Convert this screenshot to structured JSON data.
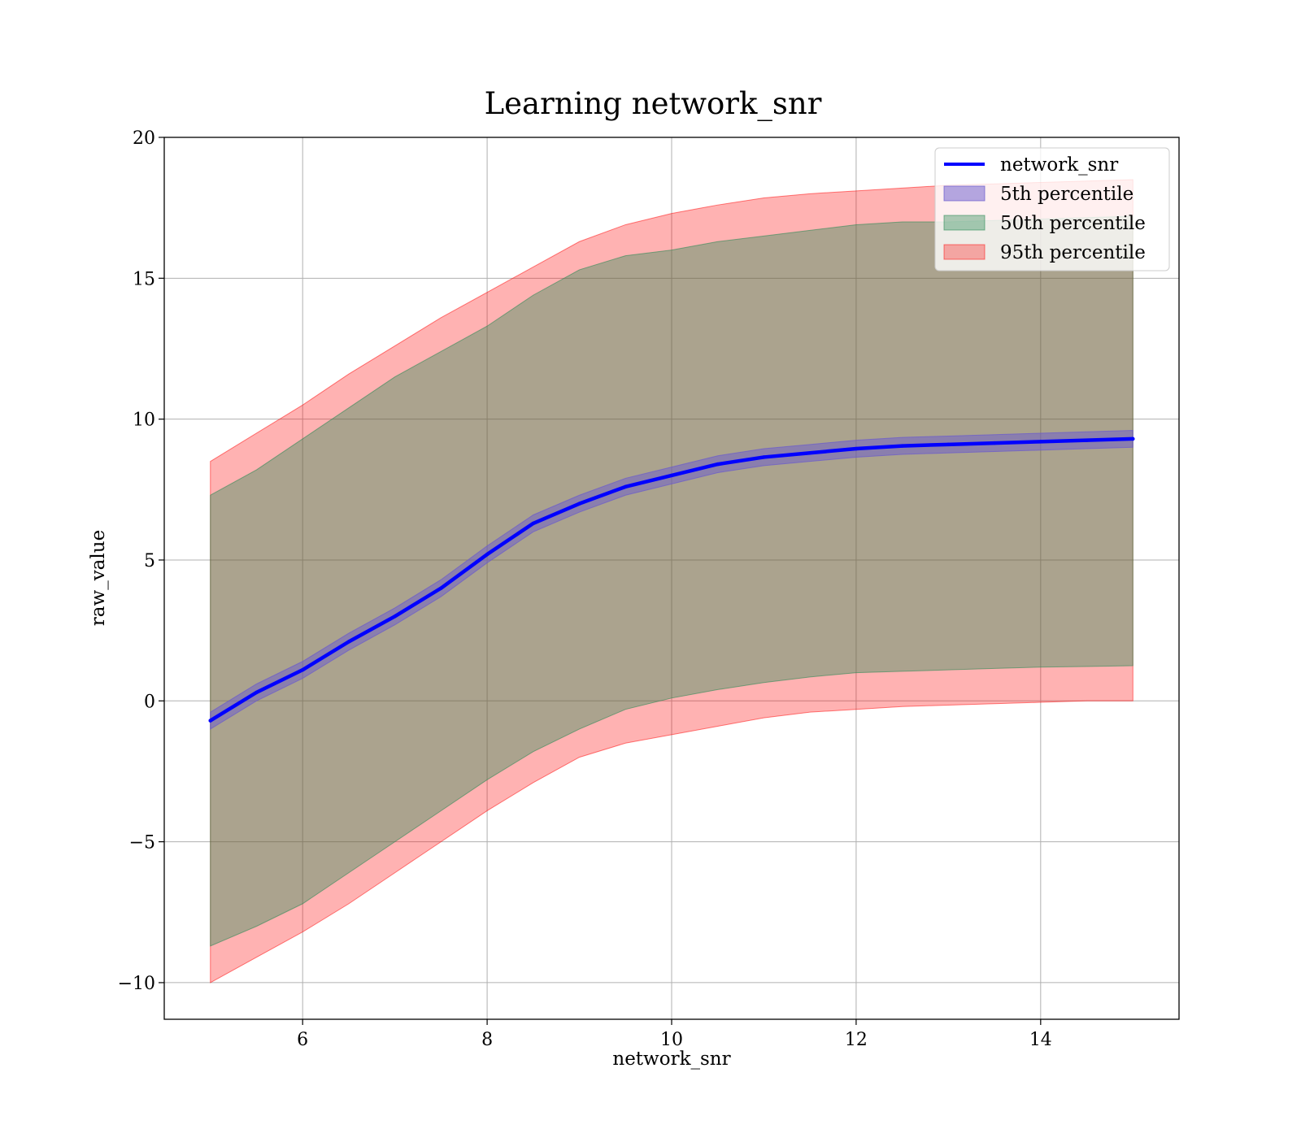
{
  "chart_data": {
    "type": "line",
    "title": "Learning network_snr",
    "xlabel": "network_snr",
    "ylabel": "raw_value",
    "xlim": [
      4.5,
      15.5
    ],
    "ylim": [
      -11.3,
      20
    ],
    "xticks": [
      6,
      8,
      10,
      12,
      14
    ],
    "yticks": [
      -10,
      -5,
      0,
      5,
      10,
      15,
      20
    ],
    "xtick_labels": [
      "6",
      "8",
      "10",
      "12",
      "14"
    ],
    "ytick_labels": [
      "−10",
      "−5",
      "0",
      "5",
      "10",
      "15",
      "20"
    ],
    "grid": true,
    "legend_position": "top-right",
    "x": [
      5.0,
      5.5,
      6.0,
      6.5,
      7.0,
      7.5,
      8.0,
      8.5,
      9.0,
      9.5,
      10.0,
      10.5,
      11.0,
      11.5,
      12.0,
      12.5,
      13.0,
      13.5,
      14.0,
      14.5,
      15.0
    ],
    "line": {
      "name": "network_snr",
      "color": "#0000ff",
      "values": [
        -0.7,
        0.3,
        1.1,
        2.1,
        3.0,
        4.0,
        5.2,
        6.3,
        7.0,
        7.6,
        8.0,
        8.4,
        8.65,
        8.8,
        8.95,
        9.05,
        9.1,
        9.15,
        9.2,
        9.25,
        9.3
      ]
    },
    "bands": [
      {
        "name": "5th percentile",
        "color": "#6a5acd",
        "opacity": 0.5,
        "lower": [
          -1.0,
          0.0,
          0.8,
          1.8,
          2.7,
          3.7,
          4.9,
          6.0,
          6.7,
          7.3,
          7.7,
          8.1,
          8.35,
          8.5,
          8.65,
          8.75,
          8.8,
          8.85,
          8.9,
          8.95,
          9.0
        ],
        "upper": [
          -0.4,
          0.6,
          1.4,
          2.4,
          3.3,
          4.3,
          5.5,
          6.6,
          7.3,
          7.9,
          8.3,
          8.7,
          8.95,
          9.1,
          9.25,
          9.35,
          9.4,
          9.45,
          9.5,
          9.55,
          9.6
        ]
      },
      {
        "name": "50th percentile",
        "color": "#2e8b57",
        "opacity": 0.4,
        "lower": [
          -8.7,
          -8.0,
          -7.2,
          -6.1,
          -5.0,
          -3.9,
          -2.8,
          -1.8,
          -1.0,
          -0.3,
          0.1,
          0.4,
          0.65,
          0.85,
          1.0,
          1.05,
          1.1,
          1.15,
          1.2,
          1.22,
          1.25
        ],
        "upper": [
          7.3,
          8.2,
          9.3,
          10.4,
          11.5,
          12.4,
          13.3,
          14.4,
          15.3,
          15.8,
          16.0,
          16.3,
          16.5,
          16.7,
          16.9,
          17.0,
          17.0,
          17.05,
          17.1,
          17.15,
          17.2
        ]
      },
      {
        "name": "95th percentile",
        "color": "#ff0000",
        "opacity": 0.3,
        "lower": [
          -10.0,
          -9.1,
          -8.2,
          -7.2,
          -6.1,
          -5.0,
          -3.9,
          -2.9,
          -2.0,
          -1.5,
          -1.2,
          -0.9,
          -0.6,
          -0.4,
          -0.3,
          -0.2,
          -0.15,
          -0.1,
          -0.05,
          0.0,
          0.0
        ],
        "upper": [
          8.5,
          9.5,
          10.5,
          11.6,
          12.6,
          13.6,
          14.5,
          15.4,
          16.3,
          16.9,
          17.3,
          17.6,
          17.85,
          18.0,
          18.1,
          18.2,
          18.3,
          18.35,
          18.4,
          18.45,
          18.5
        ]
      }
    ],
    "legend": [
      {
        "label": "network_snr",
        "kind": "line",
        "color": "#0000ff"
      },
      {
        "label": "5th percentile",
        "kind": "patch",
        "color": "#6a5acd",
        "opacity": 0.5
      },
      {
        "label": "50th percentile",
        "kind": "patch",
        "color": "#2e8b57",
        "opacity": 0.4
      },
      {
        "label": "95th percentile",
        "kind": "patch",
        "color": "#ff0000",
        "opacity": 0.3
      }
    ]
  }
}
